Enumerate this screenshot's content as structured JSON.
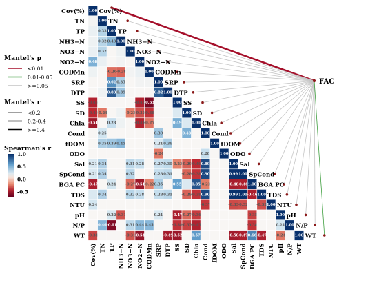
{
  "chart_data": {
    "type": "heatmap",
    "variables": [
      "Cov(%)",
      "TN",
      "TP",
      "NH3−N",
      "NO3−N",
      "NO2−N",
      "CODMn",
      "SRP",
      "DTP",
      "SS",
      "SD",
      "Chla",
      "Cond",
      "fDOM",
      "ODO",
      "Sal",
      "SpCond",
      "BGA PC",
      "TDS",
      "NTU",
      "pH",
      "N/P",
      "WT"
    ],
    "target_node": "FAC",
    "correlations": [
      [
        1.0
      ],
      [
        0.08,
        1.0
      ],
      [
        0.12,
        0.33,
        1.0
      ],
      [
        0.1,
        0.32,
        0.43,
        1.0
      ],
      [
        0.12,
        0.32,
        0.05,
        0.1,
        1.0
      ],
      [
        0.48,
        0.12,
        0.05,
        0.08,
        0.05,
        1.0
      ],
      [
        0.1,
        0.05,
        -0.26,
        -0.28,
        0.08,
        0.12,
        1.0
      ],
      [
        0.05,
        0.05,
        0.62,
        0.35,
        0.05,
        0.08,
        0.08,
        1.0
      ],
      [
        0.05,
        0.1,
        0.83,
        0.39,
        0.05,
        0.05,
        0.05,
        0.82,
        1.0
      ],
      [
        -0.45,
        0.05,
        0.05,
        0.05,
        0.05,
        -0.45,
        -0.63,
        0.05,
        0.05,
        1.0
      ],
      [
        -0.4,
        -0.24,
        0.05,
        0.1,
        -0.23,
        -0.32,
        -0.38,
        0.05,
        0.05,
        0.2,
        1.0
      ],
      [
        -0.51,
        0.05,
        0.28,
        0.1,
        0.05,
        -0.44,
        -0.25,
        0.05,
        0.05,
        0.49,
        0.2,
        1.0
      ],
      [
        0.05,
        0.25,
        0.05,
        0.05,
        0.05,
        0.05,
        0.05,
        0.39,
        0.05,
        0.05,
        0.48,
        0.05,
        1.0
      ],
      [
        0.05,
        0.35,
        0.39,
        0.45,
        0.05,
        0.05,
        0.05,
        0.21,
        0.36,
        0.05,
        0.05,
        0.05,
        0.05,
        1.0
      ],
      [
        0.05,
        0.05,
        0.05,
        0.05,
        0.05,
        0.05,
        0.05,
        -0.24,
        0.05,
        0.05,
        0.05,
        0.05,
        0.28,
        0.05,
        1.0
      ],
      [
        0.21,
        0.34,
        0.05,
        0.05,
        0.31,
        0.28,
        0.05,
        0.27,
        0.3,
        -0.22,
        -0.29,
        -0.4,
        0.89,
        0.05,
        0.05,
        1.0
      ],
      [
        0.21,
        0.34,
        0.05,
        0.05,
        0.32,
        0.05,
        0.05,
        0.28,
        0.31,
        0.05,
        -0.28,
        -0.38,
        0.9,
        0.05,
        0.05,
        0.99,
        1.0
      ],
      [
        -0.47,
        0.05,
        0.24,
        0.05,
        -0.27,
        -0.51,
        -0.22,
        0.35,
        0.05,
        0.55,
        0.2,
        0.85,
        -0.23,
        0.05,
        0.05,
        -0.48,
        -0.46,
        1.0
      ],
      [
        0.2,
        0.34,
        0.05,
        0.05,
        0.32,
        0.28,
        0.05,
        0.28,
        0.31,
        0.05,
        -0.28,
        -0.38,
        0.9,
        0.05,
        0.05,
        0.99,
        1.0,
        -0.46,
        1.0
      ],
      [
        0.24,
        0.05,
        0.05,
        0.05,
        0.05,
        0.05,
        0.05,
        0.05,
        0.05,
        0.05,
        0.05,
        0.05,
        -0.37,
        0.05,
        0.05,
        -0.33,
        -0.32,
        0.05,
        -0.32,
        1.0
      ],
      [
        0.05,
        0.05,
        0.22,
        -0.31,
        0.05,
        0.05,
        0.05,
        0.21,
        0.05,
        -0.47,
        -0.27,
        -0.36,
        0.05,
        0.05,
        0.05,
        0.05,
        0.05,
        -0.35,
        0.05,
        0.05,
        1.0
      ],
      [
        0.05,
        0.46,
        -0.61,
        0.05,
        0.31,
        0.44,
        0.45,
        0.05,
        0.05,
        -0.38,
        -0.35,
        -0.45,
        0.05,
        0.05,
        0.05,
        0.05,
        0.05,
        -0.38,
        0.05,
        0.05,
        0.24,
        1.0
      ],
      [
        -0.34,
        0.05,
        0.05,
        0.05,
        -0.31,
        -0.54,
        0.05,
        0.05,
        -0.49,
        -0.52,
        0.05,
        0.57,
        0.05,
        0.05,
        0.05,
        -0.5,
        -0.47,
        0.66,
        -0.47,
        0.05,
        -0.24,
        0.05,
        1.0
      ]
    ],
    "cell_labels": [
      [
        "1.00"
      ],
      [
        "",
        "1.00"
      ],
      [
        "",
        "0.33",
        "1.00"
      ],
      [
        "",
        "0.32",
        "0.43",
        "1.00"
      ],
      [
        "",
        "0.32",
        "",
        "",
        "1.00"
      ],
      [
        "0.48",
        "",
        "",
        "",
        "",
        "1.00"
      ],
      [
        "",
        "",
        "-0.26",
        "-0.28",
        "",
        "",
        "1.00"
      ],
      [
        "",
        "",
        "0.62",
        "0.35",
        "",
        "",
        "",
        "1.00"
      ],
      [
        "",
        "",
        "0.83",
        "0.39",
        "",
        "",
        "",
        "0.82",
        "1.00"
      ],
      [
        "-0.45",
        "",
        "",
        "",
        "",
        "-0.45",
        "-0.63",
        "",
        "",
        "1.00"
      ],
      [
        "-0.40",
        "-0.24",
        "",
        "",
        "-0.23",
        "-0.32",
        "-0.38",
        "",
        "",
        "",
        "1.00"
      ],
      [
        "-0.51",
        "",
        "0.28",
        "",
        "",
        "-0.44",
        "-0.25",
        "",
        "",
        "0.49",
        "",
        "1.00"
      ],
      [
        "",
        "0.25",
        "",
        "",
        "",
        "",
        "",
        "0.39",
        "",
        "",
        "0.48",
        "",
        "1.00"
      ],
      [
        "",
        "0.35",
        "0.39",
        "0.45",
        "",
        "",
        "",
        "0.21",
        "0.36",
        "",
        "",
        "",
        "",
        "1.00"
      ],
      [
        "",
        "",
        "",
        "",
        "",
        "",
        "",
        "-0.24",
        "",
        "",
        "",
        "",
        "0.28",
        "",
        "1.00"
      ],
      [
        "0.21",
        "0.34",
        "",
        "",
        "0.31",
        "0.28",
        "",
        "0.27",
        "0.30",
        "-0.22",
        "-0.29",
        "-0.40",
        "0.89",
        "",
        "",
        "1.00"
      ],
      [
        "0.21",
        "0.34",
        "",
        "",
        "0.32",
        "",
        "",
        "0.28",
        "0.31",
        "",
        "-0.28",
        "-0.38",
        "0.90",
        "",
        "",
        "0.99",
        "1.00"
      ],
      [
        "-0.47",
        "",
        "0.24",
        "",
        "-0.27",
        "-0.51",
        "-0.22",
        "0.35",
        "",
        "0.55",
        "",
        "0.85",
        "-0.23",
        "",
        "",
        "-0.48",
        "-0.46",
        "1.00"
      ],
      [
        "",
        "0.34",
        "",
        "",
        "0.32",
        "0.28",
        "",
        "0.28",
        "0.31",
        "",
        "-0.28",
        "-0.38",
        "0.90",
        "",
        "",
        "0.99",
        "1.00",
        "-0.46",
        "1.00"
      ],
      [
        "0.24",
        "",
        "",
        "",
        "",
        "",
        "",
        "",
        "",
        "",
        "",
        "",
        "-0.37",
        "",
        "",
        "-0.33",
        "-0.32",
        "",
        "-0.32",
        "1.00"
      ],
      [
        "",
        "",
        "0.22",
        "-0.31",
        "",
        "",
        "",
        "0.21",
        "",
        "-0.47",
        "-0.27",
        "-0.36",
        "",
        "",
        "",
        "",
        "",
        "-0.35",
        "",
        "",
        "1.00"
      ],
      [
        "",
        "0.46",
        "-0.61",
        "",
        "0.31",
        "0.44",
        "0.45",
        "",
        "",
        "-0.38",
        "-0.35",
        "-0.45",
        "",
        "",
        "",
        "",
        "",
        "-0.38",
        "",
        "",
        "0.24",
        "1.00"
      ],
      [
        "-0.34",
        "",
        "",
        "",
        "-0.31",
        "-0.54",
        "",
        "",
        "-0.49",
        "-0.52",
        "",
        "0.57",
        "",
        "",
        "",
        "-0.50",
        "-0.47",
        "0.66",
        "-0.47",
        "",
        "-0.24",
        "",
        "1.00"
      ]
    ],
    "mantel_links": [
      {
        "to": "Cov(%)",
        "p": "<0.01",
        "r": ">=0.4"
      },
      {
        "to": "TN",
        "p": ">=0.05",
        "r": "<0.2"
      },
      {
        "to": "TP",
        "p": ">=0.05",
        "r": "<0.2"
      },
      {
        "to": "NH3−N",
        "p": ">=0.05",
        "r": "<0.2"
      },
      {
        "to": "NO3−N",
        "p": ">=0.05",
        "r": "<0.2"
      },
      {
        "to": "NO2−N",
        "p": ">=0.05",
        "r": "<0.2"
      },
      {
        "to": "CODMn",
        "p": ">=0.05",
        "r": "<0.2"
      },
      {
        "to": "SRP",
        "p": ">=0.05",
        "r": "<0.2"
      },
      {
        "to": "DTP",
        "p": ">=0.05",
        "r": "<0.2"
      },
      {
        "to": "SS",
        "p": ">=0.05",
        "r": "<0.2"
      },
      {
        "to": "SD",
        "p": ">=0.05",
        "r": "<0.2"
      },
      {
        "to": "Chla",
        "p": ">=0.05",
        "r": "<0.2"
      },
      {
        "to": "Cond",
        "p": ">=0.05",
        "r": "<0.2"
      },
      {
        "to": "fDOM",
        "p": ">=0.05",
        "r": "<0.2"
      },
      {
        "to": "ODO",
        "p": ">=0.05",
        "r": "<0.2"
      },
      {
        "to": "Sal",
        "p": ">=0.05",
        "r": "<0.2"
      },
      {
        "to": "SpCond",
        "p": ">=0.05",
        "r": "<0.2"
      },
      {
        "to": "BGA PC",
        "p": ">=0.05",
        "r": "<0.2"
      },
      {
        "to": "TDS",
        "p": ">=0.05",
        "r": "<0.2"
      },
      {
        "to": "NTU",
        "p": ">=0.05",
        "r": "<0.2"
      },
      {
        "to": "pH",
        "p": ">=0.05",
        "r": "<0.2"
      },
      {
        "to": "N/P",
        "p": ">=0.05",
        "r": "<0.2"
      },
      {
        "to": "WT",
        "p": "0.01-0.05",
        "r": "<0.2"
      }
    ],
    "legend": {
      "mantel_p": {
        "title": "Mantel's p",
        "items": [
          "<0.01",
          "0.01-0.05",
          ">=0.05"
        ],
        "colors": [
          "#a50f2a",
          "#3e9e3e",
          "#c4c4c4"
        ]
      },
      "mantel_r": {
        "title": "Mantel's r",
        "items": [
          "<0.2",
          "0.2-0.4",
          ">=0.4"
        ]
      },
      "spearman": {
        "title": "Spearman's r",
        "ticks": [
          "1.0",
          "0.5",
          "0.0",
          "-0.5"
        ],
        "range": [
          -0.7,
          1.0
        ]
      }
    },
    "colors": {
      "positive": "#08306b",
      "mid": "#f7f7f7",
      "negative": "#67001f"
    }
  }
}
